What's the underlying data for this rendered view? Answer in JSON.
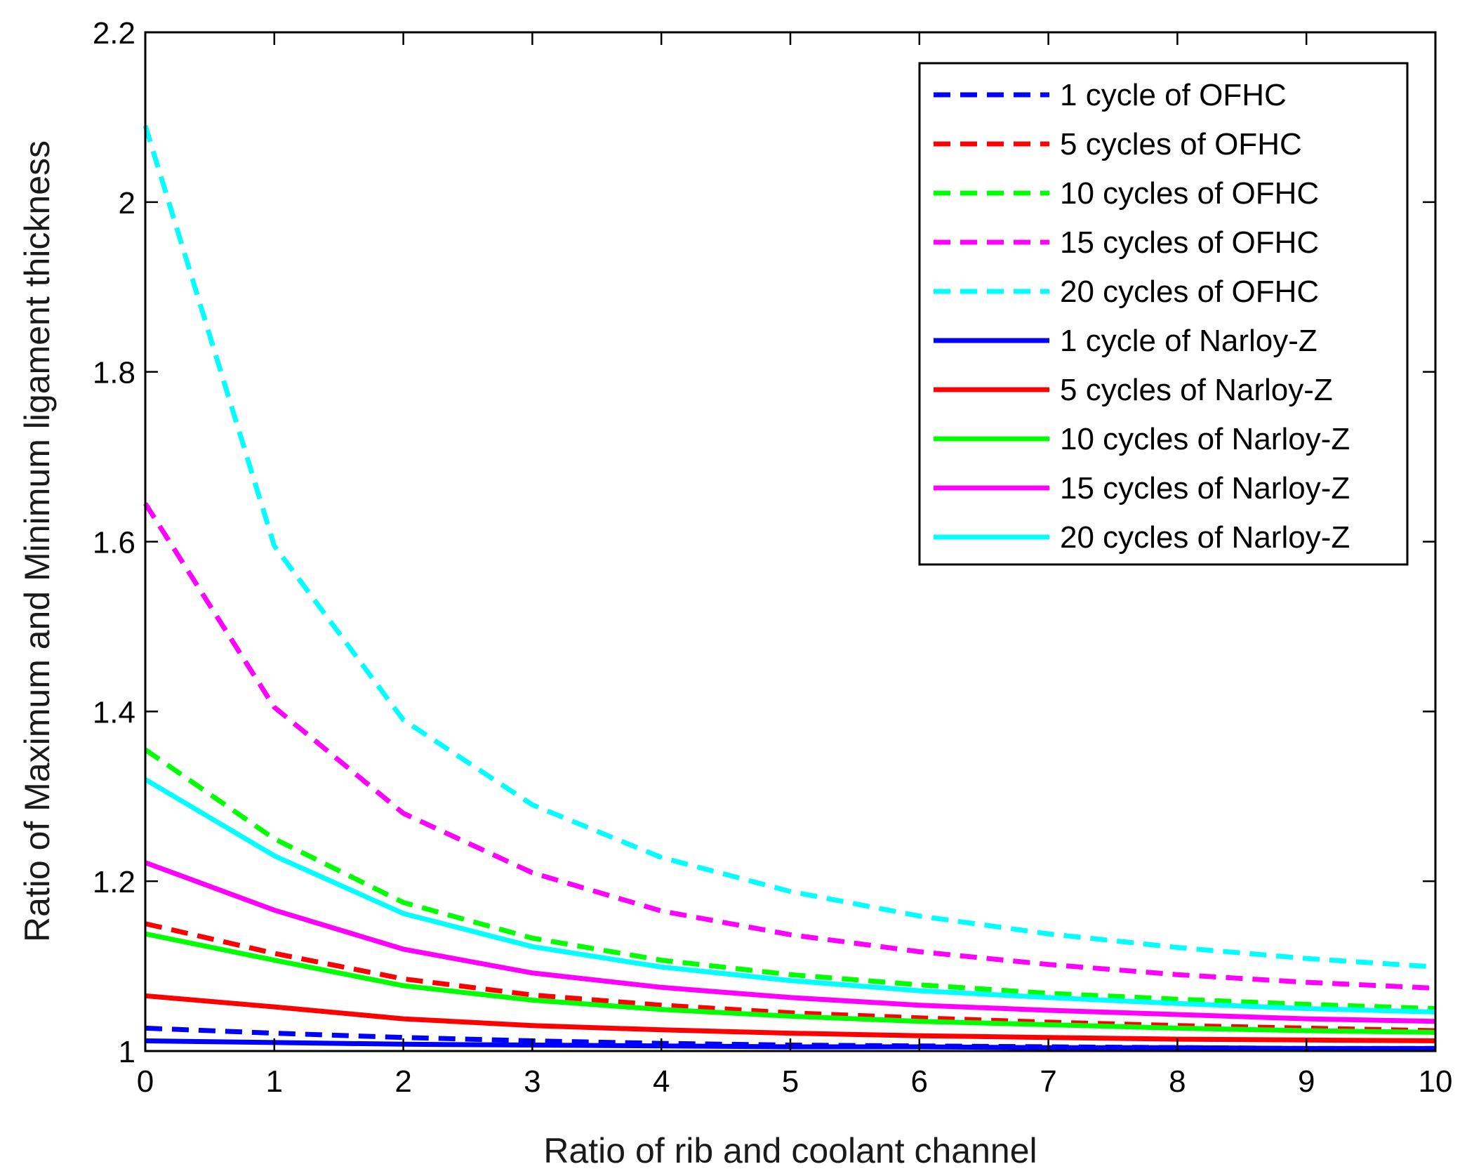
{
  "chart_data": {
    "type": "line",
    "title": "",
    "xlabel": "Ratio of rib and coolant channel",
    "ylabel": "Ratio of Maximum and Minimum ligament thickness",
    "xlim": [
      0,
      10
    ],
    "ylim": [
      1,
      2.2
    ],
    "xticks": [
      0,
      1,
      2,
      3,
      4,
      5,
      6,
      7,
      8,
      9,
      10
    ],
    "yticks": [
      1,
      1.2,
      1.4,
      1.6,
      1.8,
      2,
      2.2
    ],
    "xtick_labels": [
      "0",
      "1",
      "2",
      "3",
      "4",
      "5",
      "6",
      "7",
      "8",
      "9",
      "10"
    ],
    "ytick_labels": [
      "1",
      "1.2",
      "1.4",
      "1.6",
      "1.8",
      "2",
      "2.2"
    ],
    "grid": false,
    "legend_position": "top-right",
    "x": [
      0,
      1,
      2,
      3,
      4,
      5,
      6,
      7,
      8,
      9,
      10
    ],
    "series": [
      {
        "name": "1 cycle of OFHC",
        "color": "#0000ff",
        "style": "dashed",
        "values": [
          1.027,
          1.021,
          1.016,
          1.012,
          1.009,
          1.007,
          1.006,
          1.005,
          1.004,
          1.003,
          1.003
        ]
      },
      {
        "name": "5 cycles of OFHC",
        "color": "#ff0000",
        "style": "dashed",
        "values": [
          1.15,
          1.115,
          1.085,
          1.066,
          1.054,
          1.045,
          1.039,
          1.034,
          1.03,
          1.027,
          1.024
        ]
      },
      {
        "name": "10 cycles of OFHC",
        "color": "#00ff00",
        "style": "dashed",
        "values": [
          1.355,
          1.25,
          1.175,
          1.133,
          1.107,
          1.09,
          1.078,
          1.068,
          1.061,
          1.055,
          1.05
        ]
      },
      {
        "name": "15 cycles of OFHC",
        "color": "#ff00ff",
        "style": "dashed",
        "values": [
          1.645,
          1.405,
          1.28,
          1.21,
          1.165,
          1.137,
          1.117,
          1.102,
          1.09,
          1.081,
          1.074
        ]
      },
      {
        "name": "20 cycles of OFHC",
        "color": "#00ffff",
        "style": "dashed",
        "values": [
          2.09,
          1.595,
          1.39,
          1.29,
          1.228,
          1.188,
          1.159,
          1.138,
          1.122,
          1.109,
          1.099
        ]
      },
      {
        "name": "1 cycle of Narloy-Z",
        "color": "#0000ff",
        "style": "solid",
        "values": [
          1.012,
          1.01,
          1.008,
          1.007,
          1.006,
          1.005,
          1.005,
          1.004,
          1.004,
          1.003,
          1.003
        ]
      },
      {
        "name": "5 cycles of Narloy-Z",
        "color": "#ff0000",
        "style": "solid",
        "values": [
          1.065,
          1.052,
          1.038,
          1.03,
          1.025,
          1.021,
          1.018,
          1.016,
          1.014,
          1.013,
          1.012
        ]
      },
      {
        "name": "10 cycles of Narloy-Z",
        "color": "#00ff00",
        "style": "solid",
        "values": [
          1.138,
          1.107,
          1.077,
          1.06,
          1.049,
          1.041,
          1.035,
          1.031,
          1.027,
          1.024,
          1.022
        ]
      },
      {
        "name": "15 cycles of Narloy-Z",
        "color": "#ff00ff",
        "style": "solid",
        "values": [
          1.222,
          1.166,
          1.12,
          1.092,
          1.075,
          1.063,
          1.054,
          1.048,
          1.043,
          1.038,
          1.035
        ]
      },
      {
        "name": "20 cycles of Narloy-Z",
        "color": "#00ffff",
        "style": "solid",
        "values": [
          1.32,
          1.23,
          1.162,
          1.123,
          1.099,
          1.083,
          1.071,
          1.063,
          1.056,
          1.05,
          1.046
        ]
      }
    ]
  }
}
